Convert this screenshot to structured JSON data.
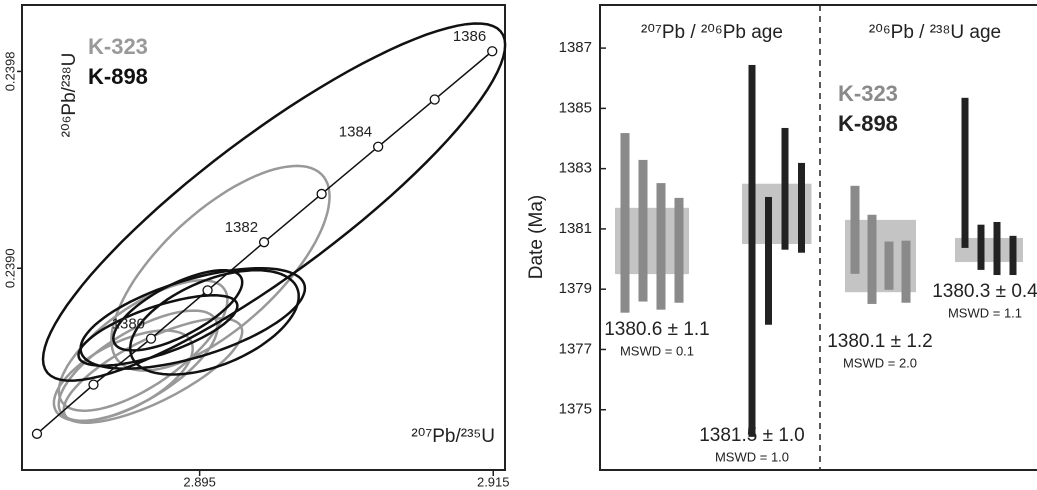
{
  "chart_data": [
    {
      "type": "concordia",
      "xlabel": "²⁰⁷Pb/²³⁵U",
      "ylabel": "²⁰⁶Pb/²³⁸U",
      "xlim": [
        2.8829,
        2.9158
      ],
      "ylim": [
        0.23818,
        0.24007
      ],
      "xticks": [
        2.895,
        2.915
      ],
      "yticks": [
        {
          "value": 0.239,
          "label": "0.2390"
        },
        {
          "value": 0.2398,
          "label": "0.2398"
        }
      ],
      "concordia": {
        "ages": [
          null,
          null,
          1380,
          null,
          1382,
          null,
          1384,
          null,
          1386
        ],
        "x": [
          2.88392,
          2.88777,
          2.89169,
          2.89554,
          2.89939,
          2.90331,
          2.90716,
          2.91101,
          2.91493
        ],
        "y": [
          0.238327,
          0.238527,
          0.238714,
          0.23891,
          0.239106,
          0.239302,
          0.239494,
          0.239686,
          0.239882
        ]
      },
      "series": [
        {
          "name": "K-323",
          "color": "#999999",
          "ellipses": [
            {
              "x": 2.89642,
              "y": 0.239,
              "sx": 0.00743,
              "sy": 0.000416,
              "rho": 0.7
            },
            {
              "x": 2.89115,
              "y": 0.238686,
              "sx": 0.00574,
              "sy": 0.000265,
              "rho": 0.7
            },
            {
              "x": 2.89081,
              "y": 0.238604,
              "sx": 0.00541,
              "sy": 0.000224,
              "rho": 0.7
            },
            {
              "x": 2.89182,
              "y": 0.238584,
              "sx": 0.00608,
              "sy": 0.000212,
              "rho": 0.75
            },
            {
              "x": 2.8898,
              "y": 0.238563,
              "sx": 0.00473,
              "sy": 0.000184,
              "rho": 0.6
            }
          ]
        },
        {
          "name": "K-898",
          "color": "#111111",
          "ellipses": [
            {
              "x": 2.90007,
              "y": 0.239269,
              "sx": 0.01574,
              "sy": 0.000726,
              "rho": 0.88
            },
            {
              "x": 2.89453,
              "y": 0.238796,
              "sx": 0.00764,
              "sy": 0.000204,
              "rho": 0.6
            },
            {
              "x": 2.89601,
              "y": 0.23878,
              "sx": 0.00574,
              "sy": 0.000212,
              "rho": 0.5
            },
            {
              "x": 2.89351,
              "y": 0.238829,
              "sx": 0.00439,
              "sy": 0.000163,
              "rho": 0.7
            },
            {
              "x": 2.89216,
              "y": 0.238747,
              "sx": 0.00541,
              "sy": 0.000143,
              "rho": 0.7
            }
          ]
        }
      ]
    },
    {
      "type": "rank_order",
      "ylabel": "Date (Ma)",
      "ylim": [
        1373.0,
        1388.43
      ],
      "yticks": [
        1375,
        1377,
        1379,
        1381,
        1383,
        1385,
        1387
      ],
      "sections": [
        "²⁰⁷Pb / ²⁰⁶Pb age",
        "²⁰⁶Pb / ²³⁸U age"
      ],
      "band_color": "#c4c4c4",
      "series": [
        {
          "name": "K-323",
          "color": "#8a8a8a",
          "groups": [
            {
              "values": [
                1381.2,
                1380.94,
                1380.42,
                1380.29
              ],
              "errors": [
                2.98,
                2.35,
                2.1,
                1.74
              ],
              "mean": 1380.6,
              "mean_error": 1.1,
              "mean_label": "1380.6 ± 1.1",
              "mswd_label": "MSWD = 0.1"
            },
            {
              "values": [
                1380.97,
                1379.99,
                1379.78,
                1379.58
              ],
              "errors": [
                1.46,
                1.48,
                0.8,
                1.03
              ],
              "mean": 1380.1,
              "mean_error": 1.2,
              "mean_label": "1380.1 ± 1.2",
              "mswd_label": "MSWD = 2.0"
            }
          ]
        },
        {
          "name": "K-898",
          "color": "#222222",
          "groups": [
            {
              "values": [
                1380.27,
                1379.94,
                1382.33,
                1381.7
              ],
              "errors": [
                6.17,
                2.12,
                2.02,
                1.49
              ],
              "mean": 1381.5,
              "mean_error": 1.0,
              "mean_label": "1381.5 ± 1.0",
              "mswd_label": "MSWD = 1.0"
            },
            {
              "values": [
                1382.86,
                1380.39,
                1380.35,
                1380.12
              ],
              "errors": [
                2.49,
                0.75,
                0.88,
                0.65
              ],
              "mean": 1380.3,
              "mean_error": 0.4,
              "mean_label": "1380.3 ± 0.4",
              "mswd_label": "MSWD = 1.1"
            }
          ]
        }
      ]
    }
  ]
}
